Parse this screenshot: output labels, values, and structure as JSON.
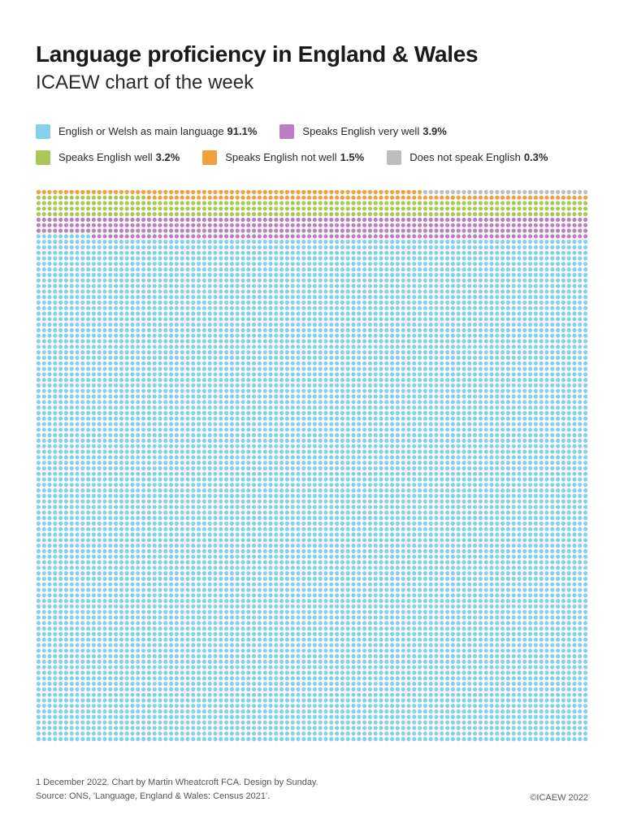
{
  "header": {
    "title": "Language proficiency in England & Wales",
    "subtitle": "ICAEW chart of the week"
  },
  "chart": {
    "type": "pictogram-dot-grid",
    "total_dots": 10000,
    "columns": 100,
    "rows": 100,
    "dot_radius": 2.6,
    "cell_size": 6.8,
    "background_color": "#ffffff",
    "fill_direction": "bottom-to-top",
    "categories": [
      {
        "key": "main",
        "label": "English or Welsh as main language",
        "pct": "91.1%",
        "value": 9110,
        "color": "#87d0eb"
      },
      {
        "key": "verywell",
        "label": "Speaks English very well",
        "pct": "3.9%",
        "value": 390,
        "color": "#bb80c2"
      },
      {
        "key": "well",
        "label": "Speaks English well",
        "pct": "3.2%",
        "value": 320,
        "color": "#a8c857"
      },
      {
        "key": "notwell",
        "label": "Speaks English not well",
        "pct": "1.5%",
        "value": 150,
        "color": "#f2a03d"
      },
      {
        "key": "none",
        "label": "Does not speak English",
        "pct": "0.3%",
        "value": 30,
        "color": "#bdbdbd"
      }
    ],
    "legend_order": [
      "main",
      "verywell",
      "well",
      "notwell",
      "none"
    ],
    "stack_order_bottom_to_top": [
      "main",
      "verywell",
      "well",
      "notwell",
      "none"
    ]
  },
  "footer": {
    "line1": "1 December 2022.   Chart by Martin Wheatcroft FCA. Design by Sunday.",
    "line2": "Source: ONS, 'Language, England & Wales: Census 2021'.",
    "copyright": "©ICAEW 2022"
  },
  "typography": {
    "title_fontsize": 28,
    "subtitle_fontsize": 24,
    "legend_fontsize": 13,
    "footer_fontsize": 11,
    "text_color": "#1a1a1a"
  }
}
